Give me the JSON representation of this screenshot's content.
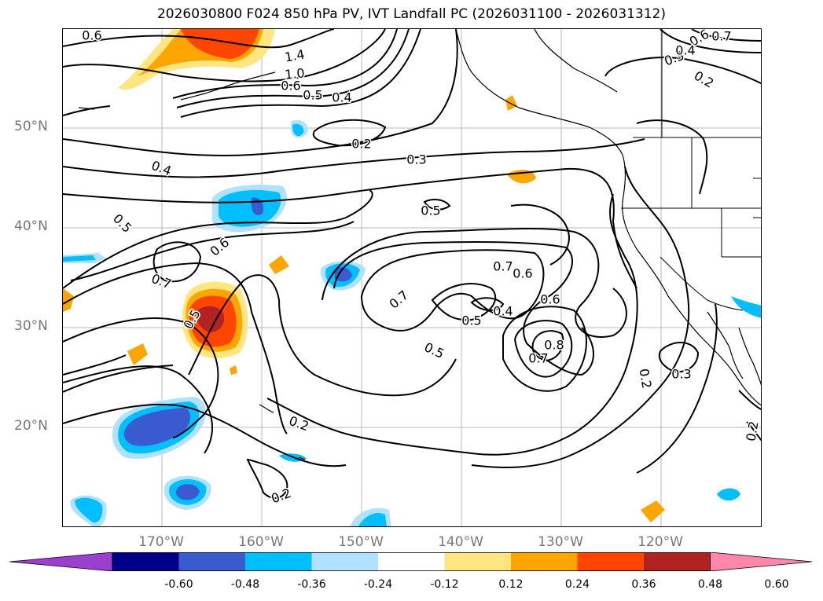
{
  "title": "2026030800 F024 850 hPa PV, IVT Landfall PC (2026031100 - 2026031312)",
  "lat_labels": [
    {
      "text": "50°N",
      "lat": 50
    },
    {
      "text": "40°N",
      "lat": 40
    },
    {
      "text": "30°N",
      "lat": 30
    },
    {
      "text": "20°N",
      "lat": 20
    }
  ],
  "lon_labels": [
    {
      "text": "170°W",
      "lon": -170
    },
    {
      "text": "160°W",
      "lon": -160
    },
    {
      "text": "150°W",
      "lon": -150
    },
    {
      "text": "140°W",
      "lon": -140
    },
    {
      "text": "130°W",
      "lon": -130
    },
    {
      "text": "120°W",
      "lon": -120
    }
  ],
  "colorbar": {
    "colors": [
      "#9b3fcf",
      "#00008b",
      "#3a5bcf",
      "#00bfff",
      "#b0e2ff",
      "#ffffff",
      "#ffe680",
      "#ffa500",
      "#ff4500",
      "#b22222",
      "#ff88aa"
    ],
    "ticks": [
      "-0.60",
      "-0.48",
      "-0.36",
      "-0.24",
      "-0.12",
      "0.12",
      "0.24",
      "0.36",
      "0.48",
      "0.60"
    ]
  },
  "contour_labels": [
    {
      "text": "0.6"
    },
    {
      "text": "1.4"
    },
    {
      "text": "1.0"
    },
    {
      "text": "0.6"
    },
    {
      "text": "0.5"
    },
    {
      "text": "0.4"
    },
    {
      "text": "0.6"
    },
    {
      "text": "0.7"
    },
    {
      "text": "0.3"
    },
    {
      "text": "0.4"
    },
    {
      "text": "0.2"
    },
    {
      "text": "0.2"
    },
    {
      "text": "0.3"
    },
    {
      "text": "0.4"
    },
    {
      "text": "0.5"
    },
    {
      "text": "0.5"
    },
    {
      "text": "0.6"
    },
    {
      "text": "0.7"
    },
    {
      "text": "0.5"
    },
    {
      "text": "0.7"
    },
    {
      "text": "0.7"
    },
    {
      "text": "0.6"
    },
    {
      "text": "0.4"
    },
    {
      "text": "0.5"
    },
    {
      "text": "0.6"
    },
    {
      "text": "0.5"
    },
    {
      "text": "0.8"
    },
    {
      "text": "0.7"
    },
    {
      "text": "0.2"
    },
    {
      "text": "0.3"
    },
    {
      "text": "0.2"
    },
    {
      "text": "0.2"
    },
    {
      "text": "0.2"
    }
  ]
}
